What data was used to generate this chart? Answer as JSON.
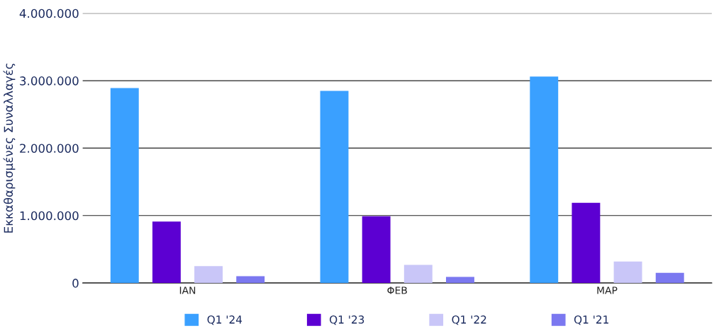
{
  "chart_data": {
    "type": "bar",
    "ylabel": "Εκκαθαρισμένες Συναλλαγές",
    "categories": [
      "IAN",
      "ΦΕΒ",
      "MAP"
    ],
    "series": [
      {
        "name": "Q1 '24",
        "color": "#3aa0ff",
        "values": [
          2890000,
          2850000,
          3060000
        ]
      },
      {
        "name": "Q1 '23",
        "color": "#5c00d2",
        "values": [
          910000,
          990000,
          1190000
        ]
      },
      {
        "name": "Q1 '22",
        "color": "#c9c6f8",
        "values": [
          250000,
          270000,
          320000
        ]
      },
      {
        "name": "Q1 '21",
        "color": "#7b78f0",
        "values": [
          100000,
          90000,
          150000
        ]
      }
    ],
    "ylim": [
      0,
      4000000
    ],
    "yticks": [
      {
        "value": 0,
        "label": "0"
      },
      {
        "value": 1000000,
        "label": "1.000.000"
      },
      {
        "value": 2000000,
        "label": "2.000.000"
      },
      {
        "value": 3000000,
        "label": "3.000.000"
      },
      {
        "value": 4000000,
        "label": "4.000.000"
      }
    ],
    "grid": "y",
    "legend": "bottom"
  }
}
